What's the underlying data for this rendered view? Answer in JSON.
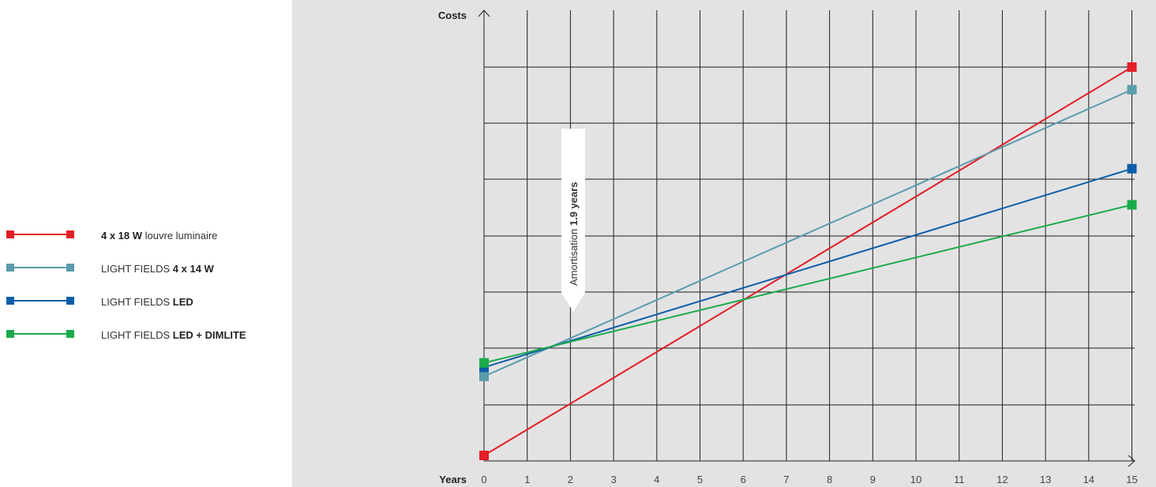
{
  "chart_data": {
    "type": "line",
    "ylabel": "Costs",
    "xlabel": "Years",
    "x": [
      0,
      15
    ],
    "xticks": [
      "0",
      "1",
      "2",
      "3",
      "4",
      "5",
      "6",
      "7",
      "8",
      "9",
      "10",
      "11",
      "12",
      "13",
      "14",
      "15"
    ],
    "xlim": [
      0,
      15
    ],
    "ylim": [
      0,
      100
    ],
    "grid": true,
    "legend": "left",
    "series": [
      {
        "name": "4 x 18 W louvre luminaire",
        "name_parts": [
          {
            "t": "4 x 18 W",
            "b": true
          },
          {
            "t": " louvre luminaire",
            "b": false
          }
        ],
        "color": "#e31e26",
        "values": [
          0,
          86
        ]
      },
      {
        "name": "LIGHT FIELDS 4 x 14 W",
        "name_parts": [
          {
            "t": "LIGHT FIELDS ",
            "b": false
          },
          {
            "t": "4 x 14 W",
            "b": true
          }
        ],
        "color": "#5b9cac",
        "values": [
          17.5,
          81
        ]
      },
      {
        "name": "LIGHT FIELDS LED",
        "name_parts": [
          {
            "t": "LIGHT FIELDS ",
            "b": false
          },
          {
            "t": "LED",
            "b": true
          }
        ],
        "color": "#0d5ea9",
        "values": [
          19.5,
          63.5
        ]
      },
      {
        "name": "LIGHT FIELDS LED + DIMLITE",
        "name_parts": [
          {
            "t": "LIGHT FIELDS ",
            "b": false
          },
          {
            "t": "LED + DIMLITE",
            "b": true
          }
        ],
        "color": "#1aab4a",
        "values": [
          20.5,
          55.5
        ]
      }
    ],
    "annotation": {
      "x": 1.9,
      "text_prefix": "Amortisation ",
      "text_bold": "1.9 years"
    }
  }
}
